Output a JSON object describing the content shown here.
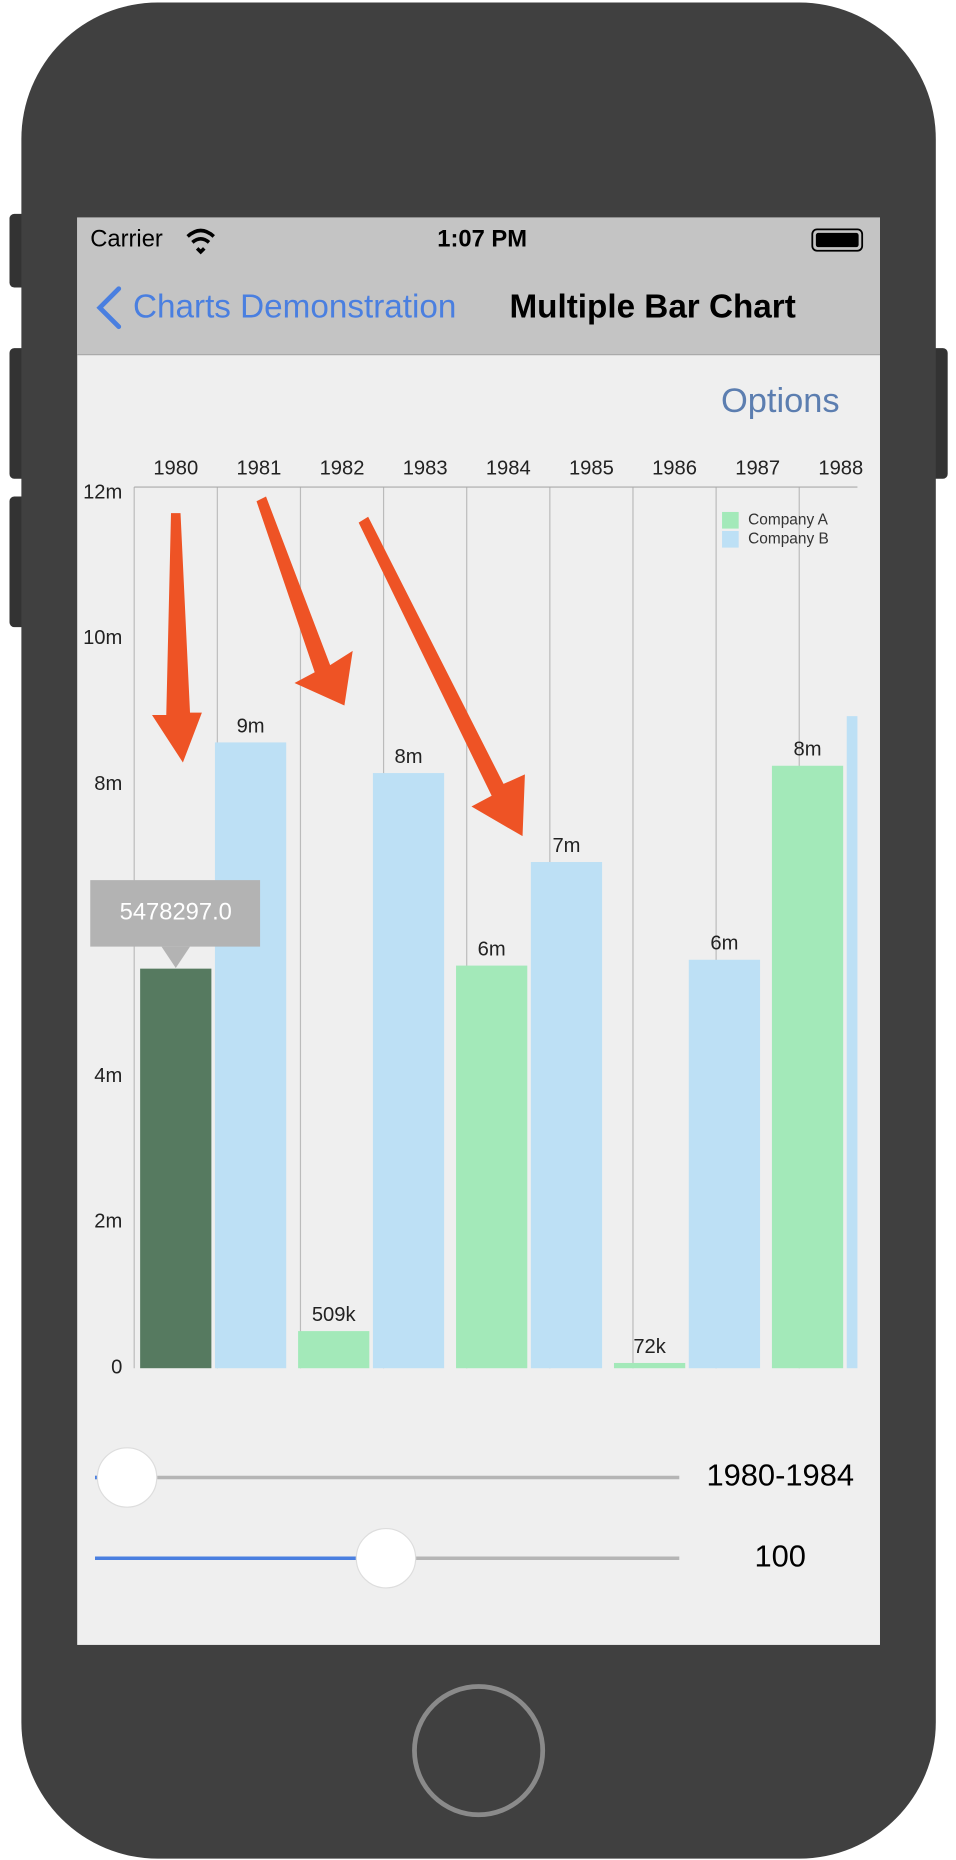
{
  "status_bar": {
    "carrier": "Carrier",
    "time": "1:07 PM"
  },
  "nav": {
    "back": "Charts Demonstration",
    "title": "Multiple Bar Chart"
  },
  "options": "Options",
  "chart_data": {
    "type": "bar",
    "x_axis_labels": [
      "1980",
      "1981",
      "1982",
      "1983",
      "1984",
      "1985",
      "1986",
      "1987",
      "1988"
    ],
    "categories": [
      null,
      null,
      null,
      null,
      null
    ],
    "series": [
      {
        "name": "Company A",
        "color": "#a3e9b9",
        "values": [
          5478297,
          509000,
          5520000,
          72000,
          8260000
        ],
        "value_labels": [
          null,
          "509k",
          "6m",
          "72k",
          "8m"
        ]
      },
      {
        "name": "Company B",
        "color": "#bde0f5",
        "values": [
          8580000,
          8160000,
          6940000,
          5600000,
          8940000
        ],
        "value_labels": [
          "9m",
          "8m",
          "7m",
          "6m",
          null
        ]
      }
    ],
    "highlight": {
      "series": 0,
      "index": 0,
      "color": "#567a60"
    },
    "ylim": [
      0,
      12000000
    ],
    "yticks": [
      {
        "value": 0,
        "label": "0"
      },
      {
        "value": 2000000,
        "label": "2m"
      },
      {
        "value": 4000000,
        "label": "4m"
      },
      {
        "value": 8000000,
        "label": "8m"
      },
      {
        "value": 10000000,
        "label": "10m"
      },
      {
        "value": 12000000,
        "label": "12m"
      }
    ],
    "legend": "top-right"
  },
  "tooltip": "5478297.0",
  "sliders": [
    {
      "label": "1980-1984"
    },
    {
      "label": "100"
    }
  ]
}
